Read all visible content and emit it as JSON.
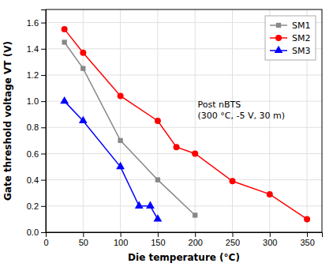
{
  "chart_data": {
    "type": "line",
    "x_label": "Die temperature (°C)",
    "y_label": "Gate threshold voltage VT (V)",
    "annotations": [
      "Post nBTS",
      "(300 °C, -5 V, 30 m)"
    ],
    "xlim": [
      0,
      370
    ],
    "ylim": [
      0.0,
      1.7
    ],
    "xticks": [
      0,
      50,
      100,
      150,
      200,
      250,
      300,
      350
    ],
    "yticks": [
      {
        "value": 0.0,
        "label": "0.0"
      },
      0.2,
      0.4,
      0.6,
      0.8,
      {
        "value": 1.0,
        "label": "1.0"
      },
      1.2,
      1.4,
      1.6
    ],
    "grid": true,
    "legend": "upper right",
    "series": [
      {
        "name": "SM1",
        "color": "#888888",
        "marker": "square",
        "x": [
          25,
          50,
          100,
          150,
          200
        ],
        "values": [
          1.45,
          1.25,
          0.7,
          0.4,
          0.13
        ]
      },
      {
        "name": "SM2",
        "color": "#FF0000",
        "marker": "circle",
        "x": [
          25,
          50,
          100,
          150,
          175,
          200,
          250,
          300,
          350
        ],
        "values": [
          1.55,
          1.37,
          1.04,
          0.85,
          0.65,
          0.6,
          0.39,
          0.29,
          0.1
        ]
      },
      {
        "name": "SM3",
        "color": "#0000FF",
        "marker": "triangle",
        "x": [
          25,
          50,
          100,
          125,
          140,
          150
        ],
        "values": [
          1.0,
          0.85,
          0.5,
          0.2,
          0.2,
          0.1
        ]
      }
    ]
  }
}
